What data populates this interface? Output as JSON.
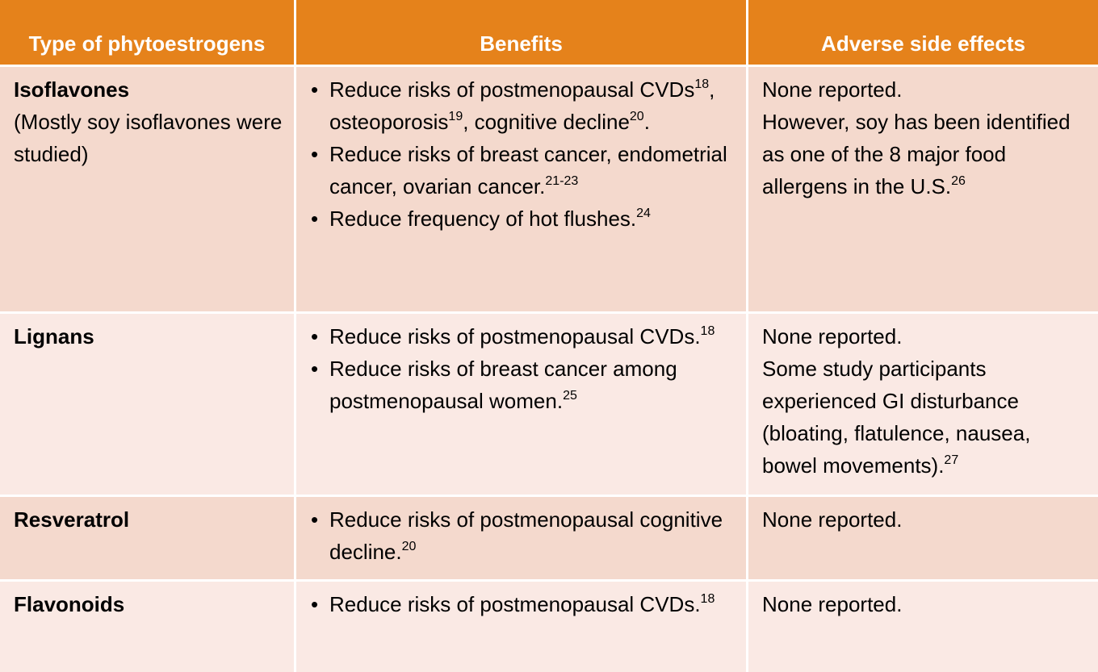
{
  "table": {
    "header": [
      "Type of phytoestrogens",
      "Benefits",
      "Adverse side effects"
    ],
    "rows": [
      {
        "type": {
          "name": "Isoflavones",
          "note": "(Mostly soy isoflavones were studied)"
        },
        "benefits": [
          [
            {
              "text": "Reduce risks of postmenopausal CVDs"
            },
            {
              "sup": "18"
            },
            {
              "text": ", osteoporosis"
            },
            {
              "sup": "19"
            },
            {
              "text": ", cognitive decline"
            },
            {
              "sup": "20"
            },
            {
              "text": "."
            }
          ],
          [
            {
              "text": "Reduce risks of breast cancer, endometrial cancer, ovarian cancer."
            },
            {
              "sup": "21-23"
            }
          ],
          [
            {
              "text": "Reduce frequency of hot flushes."
            },
            {
              "sup": "24"
            }
          ]
        ],
        "side_effects": [
          [
            {
              "text": "None reported."
            }
          ],
          [
            {
              "text": "However, soy has been identified as one of the 8 major food allergens in the U.S."
            },
            {
              "sup": "26"
            }
          ]
        ]
      },
      {
        "type": {
          "name": "Lignans"
        },
        "benefits": [
          [
            {
              "text": "Reduce risks of postmenopausal CVDs."
            },
            {
              "sup": "18"
            }
          ],
          [
            {
              "text": "Reduce risks of breast cancer among postmenopausal women."
            },
            {
              "sup": "25"
            }
          ]
        ],
        "side_effects": [
          [
            {
              "text": "None reported."
            }
          ],
          [
            {
              "text": "Some study participants experienced GI disturbance (bloating, flatulence, nausea, bowel movements)."
            },
            {
              "sup": "27"
            }
          ]
        ]
      },
      {
        "type": {
          "name": "Resveratrol"
        },
        "benefits": [
          [
            {
              "text": "Reduce risks of postmenopausal cognitive decline."
            },
            {
              "sup": "20"
            }
          ]
        ],
        "side_effects": [
          [
            {
              "text": "None reported."
            }
          ]
        ]
      },
      {
        "type": {
          "name": "Flavonoids"
        },
        "benefits": [
          [
            {
              "text": "Reduce risks of postmenopausal CVDs."
            },
            {
              "sup": "18"
            }
          ]
        ],
        "side_effects": [
          [
            {
              "text": "None reported."
            }
          ]
        ]
      }
    ]
  }
}
